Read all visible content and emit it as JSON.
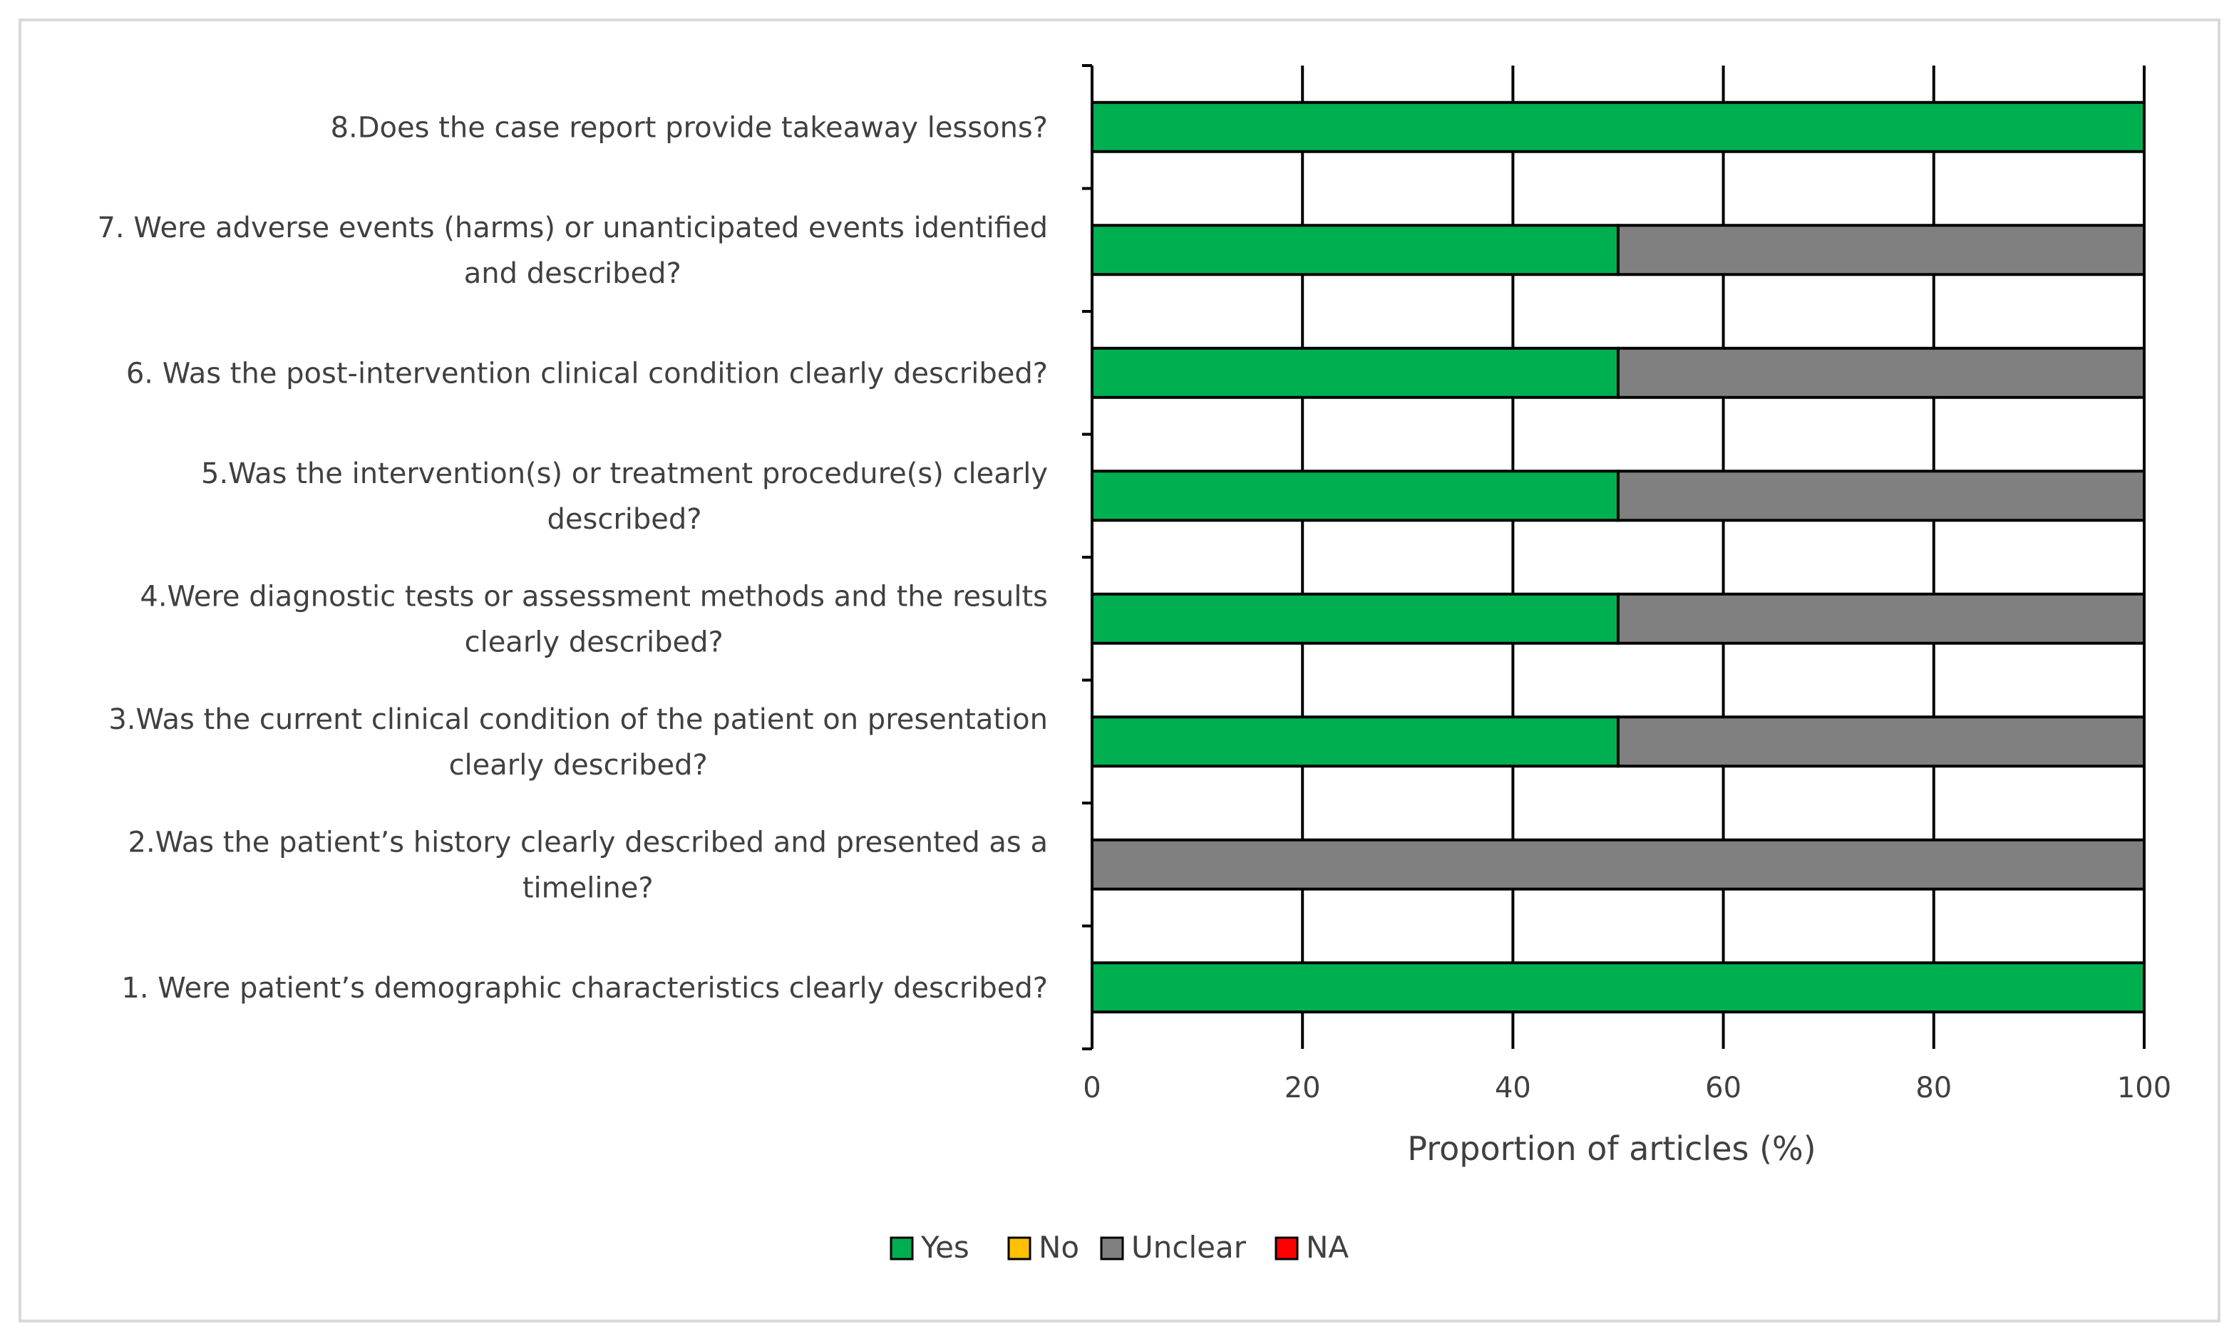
{
  "chart_data": {
    "type": "bar",
    "orientation": "horizontal",
    "stacked": true,
    "categories": [
      "1. Were patient’s demographic characteristics clearly described?",
      "2.Was the patient’s history clearly described and presented as a timeline?",
      "3.Was the current clinical condition of the patient on presentation clearly described?",
      "4.Were diagnostic tests or assessment methods and the results clearly described?",
      "5.Was the intervention(s) or treatment procedure(s) clearly described?",
      "6. Was the post-intervention clinical condition clearly described?",
      "7. Were adverse events (harms) or unanticipated events identified and described?",
      "8.Does the case report provide takeaway lessons?"
    ],
    "category_lines": [
      [
        "1. Were patient’s demographic characteristics clearly described?"
      ],
      [
        "2.Was the patient’s history clearly described and presented as a",
        "timeline?"
      ],
      [
        "3.Was the current clinical condition of the patient on presentation",
        "clearly described?"
      ],
      [
        "4.Were diagnostic tests or assessment methods and the results",
        "clearly described?"
      ],
      [
        "5.Was the intervention(s) or treatment procedure(s) clearly",
        "described?"
      ],
      [
        "6. Was the post-intervention clinical condition clearly described?"
      ],
      [
        "7. Were adverse events (harms) or unanticipated events identified",
        "and described?"
      ],
      [
        "8.Does the case report provide takeaway lessons?"
      ]
    ],
    "series": [
      {
        "name": "Yes",
        "color": "#00b050",
        "values": [
          100,
          0,
          50,
          50,
          50,
          50,
          50,
          100
        ]
      },
      {
        "name": "No",
        "color": "#ffc000",
        "values": [
          0,
          0,
          0,
          0,
          0,
          0,
          0,
          0
        ]
      },
      {
        "name": "Unclear",
        "color": "#808080",
        "values": [
          0,
          100,
          50,
          50,
          50,
          50,
          50,
          0
        ]
      },
      {
        "name": "NA",
        "color": "#ff0000",
        "values": [
          0,
          0,
          0,
          0,
          0,
          0,
          0,
          0
        ]
      }
    ],
    "xlabel": "Proportion of articles (%)",
    "ylabel": "",
    "xlim": [
      0,
      100
    ],
    "xticks": [
      0,
      20,
      40,
      60,
      80,
      100
    ],
    "grid": true,
    "legend_position": "bottom"
  }
}
